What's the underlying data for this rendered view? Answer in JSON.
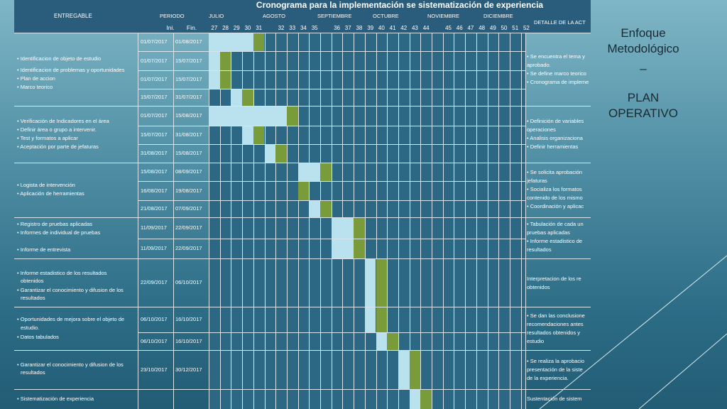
{
  "sheet": {
    "title": "Cronograma para la implementación se sistematización de experiencia",
    "col_entregable": "ENTREGABLE",
    "col_periodo": "PERIODO",
    "col_ini": "Ini.",
    "col_fin": "Fin.",
    "col_detalle": "DETALLE DE LA ACT",
    "months": [
      "JULIO",
      "AGOSTO",
      "SEPTIEMBRE",
      "OCTUBRE",
      "NOVIEMBRE",
      "DICIEMBRE"
    ],
    "weeks": [
      "27",
      "28",
      "29",
      "30",
      "31",
      "32",
      "33",
      "34",
      "35",
      "36",
      "37",
      "38",
      "39",
      "40",
      "41",
      "42",
      "43",
      "44",
      "45",
      "46",
      "47",
      "48",
      "49",
      "50",
      "51",
      "52"
    ]
  },
  "rows": [
    {
      "ini": "01/07/2017",
      "fin": "01/08/2017",
      "light": [
        0,
        4
      ],
      "green": [
        4,
        1
      ]
    },
    {
      "ini": "01/07/2017",
      "fin": "15/07/2017",
      "light": [
        0,
        1
      ],
      "green": [
        1,
        1
      ]
    },
    {
      "ini": "01/07/2017",
      "fin": "15/07/2017",
      "light": [
        0,
        1
      ],
      "green": [
        1,
        1
      ]
    },
    {
      "ini": "15/07/2017",
      "fin": "31/07/2017",
      "light": [
        2,
        1
      ],
      "green": [
        3,
        1
      ]
    },
    {
      "ini": "01/07/2017",
      "fin": "15/08/2017",
      "light": [
        0,
        7
      ],
      "green": [
        7,
        1
      ]
    },
    {
      "ini": "15/07/2017",
      "fin": "31/08/2017",
      "light": [
        3,
        1
      ],
      "green": [
        4,
        1
      ]
    },
    {
      "ini": "31/08/2017",
      "fin": "15/08/2017",
      "light": [
        5,
        1
      ],
      "green": [
        6,
        1
      ]
    },
    {
      "ini": "15/08/2017",
      "fin": "08/09/2017",
      "light": [
        8,
        2
      ],
      "green": [
        10,
        1
      ]
    },
    {
      "ini": "16/08/2017",
      "fin": "19/08/2017",
      "light": [
        8,
        0
      ],
      "green": [
        8,
        1
      ]
    },
    {
      "ini": "21/08/2017",
      "fin": "07/09/2017",
      "light": [
        9,
        1
      ],
      "green": [
        10,
        1
      ]
    },
    {
      "ini": "11/09/2017",
      "fin": "22/09/2017",
      "light": [
        11,
        2
      ],
      "green": [
        13,
        1
      ]
    },
    {
      "ini": "11/09/2017",
      "fin": "22/09/2017",
      "light": [
        11,
        2
      ],
      "green": [
        13,
        1
      ]
    },
    {
      "ini": "22/09/2017",
      "fin": "06/10/2017",
      "light": [
        14,
        1
      ],
      "green": [
        15,
        1
      ]
    },
    {
      "ini": "06/10/2017",
      "fin": "16/10/2017",
      "light": [
        14,
        1
      ],
      "green": [
        15,
        1
      ]
    },
    {
      "ini": "06/10/2017",
      "fin": "16/10/2017",
      "light": [
        15,
        1
      ],
      "green": [
        16,
        1
      ]
    },
    {
      "ini": "23/10/2017",
      "fin": "30/12/2017",
      "light": [
        17,
        1
      ],
      "green": [
        18,
        1
      ]
    },
    {
      "ini": "",
      "fin": "",
      "light": [
        18,
        1
      ],
      "green": [
        19,
        1
      ]
    }
  ],
  "tasks": [
    "• Identificacion de objeto de estudio",
    "• Identificacion de problemas y oportunidades",
    "• Plan de accion",
    "• Marco teorico",
    "• Verificación de Indicadores en el área",
    "• Definir área o grupo a intervenir.",
    "• Test y formatos a aplicar",
    "• Aceptación por parte de jefaturas",
    "• Logista de intervención",
    "• Aplicación de herramientas",
    "• Registro de pruebas aplicadas",
    "• Informes de individual de pruebas",
    "• Informe de entrevista",
    "• Informe estadistico de los resultados",
    "obtenidos",
    "• Garantizar el conocimiento y difusion de los",
    "resultados",
    "• Oportunidades de mejora sobre el objeto de",
    "estudio.",
    "• Datos tabulados",
    "• Garantizar el conocimiento y difusion de los",
    "resultados",
    "• Sistematización de experiencia"
  ],
  "details": [
    "• Se encuentra el tema y",
    "aprobado.",
    "• Se define marco teorico",
    "• Cronograma de impleme",
    "• Definición de variables",
    "operaciones",
    "• Analisis organizaciona",
    "• Definir herramientas",
    "• Se solicita aprobación",
    "jefaturas",
    "• Socializa los formatos",
    "contenido de los mismo",
    "• Coordinación y aplicac",
    "• Tabulación de cada un",
    "pruebas aplicadas",
    "• Informe estadistico de",
    "resultados",
    "Interpretacion de los re",
    "obtenidos",
    "• Se dan las conclusione",
    "recomendaciones antes",
    "resultados obtenidos y",
    "estudio",
    "• Se realiza la aprobacio",
    "presentación de la siste",
    "de la experiencia.",
    "Sustentación de sistem"
  ],
  "side": {
    "line1": "Enfoque",
    "line2": "Metodológico",
    "line3": "–",
    "line4": "PLAN",
    "line5": "OPERATIVO"
  }
}
